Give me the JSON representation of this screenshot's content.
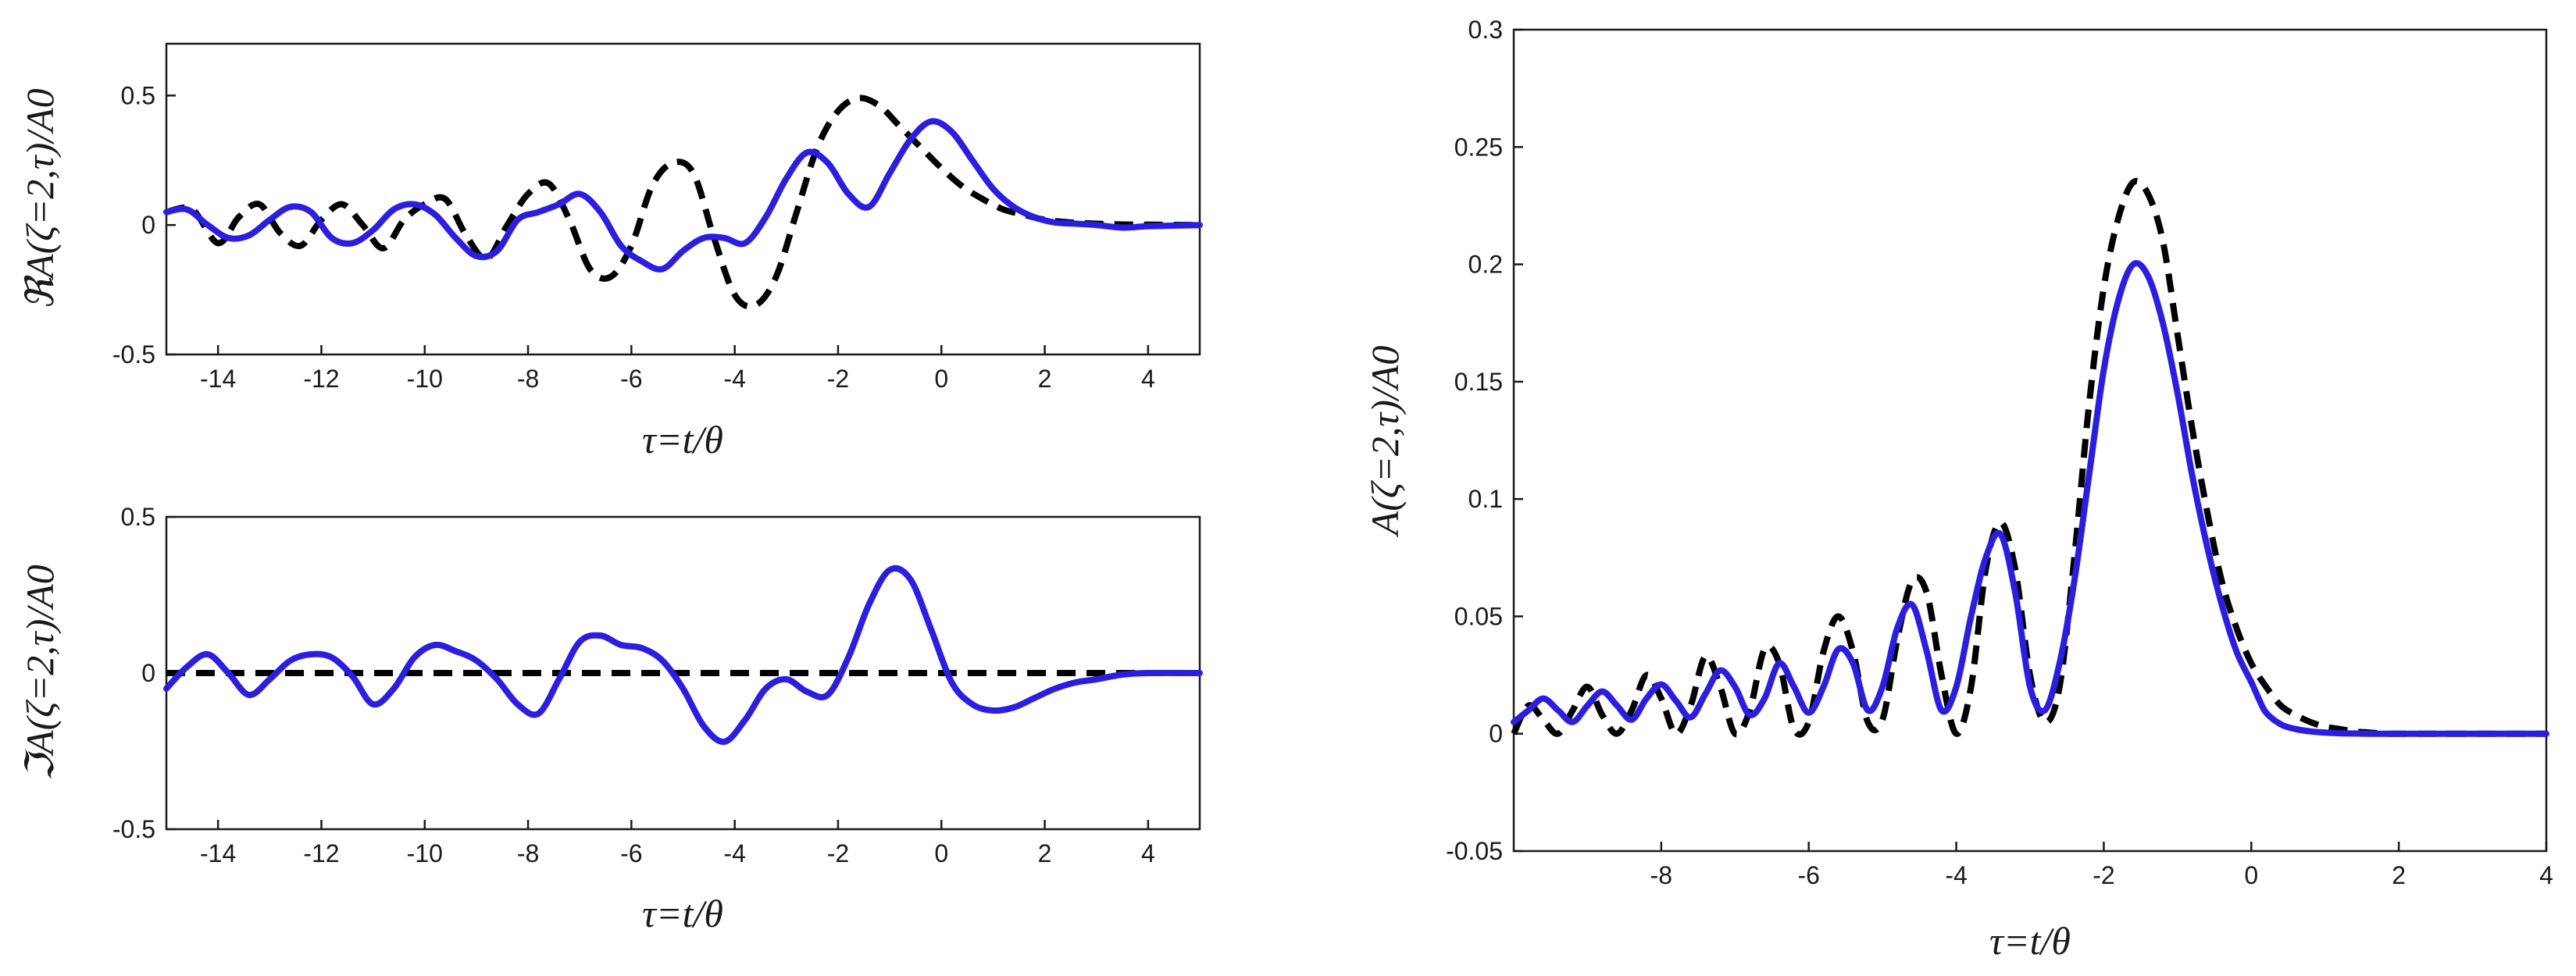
{
  "chart_data": [
    {
      "type": "line",
      "panel": "top-left",
      "ylabel": "ℜA(ζ=2,τ)/A0",
      "xlabel": "τ=t/θ",
      "xlim": [
        -15,
        5
      ],
      "ylim": [
        -0.5,
        0.7
      ],
      "xticks": [
        -14,
        -12,
        -10,
        -8,
        -6,
        -4,
        -2,
        0,
        2,
        4
      ],
      "xtick_labels": [
        "-14",
        "-12",
        "-10",
        "-8",
        "-6",
        "-4",
        "-2",
        "0",
        "2",
        "4"
      ],
      "yticks": [
        -0.5,
        0,
        0.5
      ],
      "ytick_labels": [
        "-0.5",
        "0",
        "0.5"
      ],
      "series": [
        {
          "style": "dashed",
          "color": "#000000",
          "x": [
            -15,
            -14.5,
            -14,
            -13.6,
            -13.2,
            -12.8,
            -12.4,
            -12,
            -11.6,
            -11.2,
            -10.8,
            -10.4,
            -10,
            -9.6,
            -9.2,
            -8.8,
            -8.4,
            -8,
            -7.6,
            -7.2,
            -6.8,
            -6.4,
            -6,
            -5.6,
            -5.2,
            -4.8,
            -4.4,
            -4,
            -3.6,
            -3.2,
            -2.8,
            -2.4,
            -2,
            -1.6,
            -1.2,
            -0.8,
            -0.4,
            0,
            0.4,
            0.8,
            1.2,
            1.6,
            2,
            2.5,
            3,
            3.5,
            4,
            5
          ],
          "y": [
            0.05,
            0.06,
            -0.07,
            0.03,
            0.08,
            -0.03,
            -0.08,
            0.02,
            0.08,
            0.0,
            -0.09,
            0.02,
            0.08,
            0.1,
            -0.04,
            -0.13,
            0.0,
            0.12,
            0.16,
            0.02,
            -0.17,
            -0.2,
            -0.08,
            0.15,
            0.24,
            0.2,
            -0.05,
            -0.27,
            -0.31,
            -0.2,
            0.05,
            0.3,
            0.44,
            0.49,
            0.46,
            0.38,
            0.3,
            0.22,
            0.15,
            0.1,
            0.06,
            0.04,
            0.02,
            0.01,
            0.005,
            0.002,
            0.001,
            0.0
          ]
        },
        {
          "style": "solid",
          "color": "#2a1ee0",
          "x": [
            -15,
            -14.6,
            -14.2,
            -13.8,
            -13.4,
            -13,
            -12.6,
            -12.2,
            -11.8,
            -11.4,
            -11,
            -10.6,
            -10.2,
            -9.8,
            -9.4,
            -9,
            -8.6,
            -8.2,
            -7.8,
            -7.4,
            -7,
            -6.6,
            -6.2,
            -5.8,
            -5.4,
            -5,
            -4.6,
            -4.2,
            -3.8,
            -3.4,
            -3,
            -2.6,
            -2.2,
            -1.8,
            -1.4,
            -1,
            -0.6,
            -0.2,
            0.2,
            0.6,
            1,
            1.4,
            1.8,
            2.2,
            2.6,
            3,
            3.5,
            4,
            5
          ],
          "y": [
            0.05,
            0.06,
            0.0,
            -0.05,
            -0.04,
            0.02,
            0.07,
            0.05,
            -0.05,
            -0.07,
            -0.02,
            0.06,
            0.08,
            0.04,
            -0.05,
            -0.12,
            -0.1,
            0.02,
            0.05,
            0.08,
            0.12,
            0.05,
            -0.08,
            -0.14,
            -0.17,
            -0.1,
            -0.05,
            -0.05,
            -0.07,
            0.03,
            0.18,
            0.28,
            0.24,
            0.12,
            0.07,
            0.2,
            0.33,
            0.4,
            0.36,
            0.25,
            0.14,
            0.07,
            0.03,
            0.01,
            0.005,
            0.0,
            -0.01,
            -0.005,
            0.0
          ]
        }
      ]
    },
    {
      "type": "line",
      "panel": "bottom-left",
      "ylabel": "ℑA(ζ=2,τ)/A0",
      "xlabel": "τ=t/θ",
      "xlim": [
        -15,
        5
      ],
      "ylim": [
        -0.5,
        0.5
      ],
      "xticks": [
        -14,
        -12,
        -10,
        -8,
        -6,
        -4,
        -2,
        0,
        2,
        4
      ],
      "xtick_labels": [
        "-14",
        "-12",
        "-10",
        "-8",
        "-6",
        "-4",
        "-2",
        "0",
        "2",
        "4"
      ],
      "yticks": [
        -0.5,
        0,
        0.5
      ],
      "ytick_labels": [
        "-0.5",
        "0",
        "0.5"
      ],
      "series": [
        {
          "style": "dashed",
          "color": "#000000",
          "x": [
            -15,
            -12,
            -9,
            -6,
            -3,
            0,
            3,
            5
          ],
          "y": [
            0,
            0,
            0,
            0,
            0,
            0,
            0,
            0
          ]
        },
        {
          "style": "solid",
          "color": "#2a1ee0",
          "x": [
            -15,
            -14.6,
            -14.2,
            -13.8,
            -13.4,
            -13,
            -12.6,
            -12.2,
            -11.8,
            -11.4,
            -11,
            -10.6,
            -10.2,
            -9.8,
            -9.4,
            -9,
            -8.6,
            -8.2,
            -7.8,
            -7.4,
            -7,
            -6.6,
            -6.2,
            -5.8,
            -5.4,
            -5,
            -4.6,
            -4.2,
            -3.8,
            -3.4,
            -3,
            -2.6,
            -2.2,
            -1.8,
            -1.4,
            -1,
            -0.6,
            -0.2,
            0.2,
            0.6,
            1,
            1.4,
            1.8,
            2.2,
            2.6,
            3,
            3.5,
            4,
            5
          ],
          "y": [
            -0.05,
            0.02,
            0.06,
            0.0,
            -0.07,
            -0.02,
            0.04,
            0.06,
            0.05,
            -0.01,
            -0.1,
            -0.05,
            0.05,
            0.09,
            0.07,
            0.04,
            -0.02,
            -0.1,
            -0.13,
            -0.02,
            0.1,
            0.12,
            0.09,
            0.08,
            0.04,
            -0.05,
            -0.17,
            -0.22,
            -0.15,
            -0.05,
            -0.02,
            -0.06,
            -0.07,
            0.05,
            0.22,
            0.33,
            0.3,
            0.14,
            -0.03,
            -0.1,
            -0.12,
            -0.11,
            -0.08,
            -0.05,
            -0.03,
            -0.02,
            -0.005,
            0.0,
            0.0
          ]
        }
      ]
    },
    {
      "type": "line",
      "panel": "right",
      "ylabel": "A(ζ=2,τ)/A0",
      "xlabel": "τ=t/θ",
      "xlim": [
        -10,
        4
      ],
      "ylim": [
        -0.05,
        0.3
      ],
      "xticks": [
        -8,
        -6,
        -4,
        -2,
        0,
        2,
        4
      ],
      "xtick_labels": [
        "-8",
        "-6",
        "-4",
        "-2",
        "0",
        "2",
        "4"
      ],
      "yticks": [
        -0.05,
        0,
        0.05,
        0.1,
        0.15,
        0.2,
        0.25,
        0.3
      ],
      "ytick_labels": [
        "-0.05",
        "0",
        "0.05",
        "0.1",
        "0.15",
        "0.2",
        "0.25",
        "0.3"
      ],
      "series": [
        {
          "style": "dashed",
          "color": "#000000",
          "x": [
            -10,
            -9.8,
            -9.6,
            -9.4,
            -9.2,
            -9,
            -8.8,
            -8.6,
            -8.4,
            -8.2,
            -8,
            -7.8,
            -7.6,
            -7.4,
            -7.2,
            -7,
            -6.8,
            -6.6,
            -6.4,
            -6.2,
            -6,
            -5.8,
            -5.6,
            -5.4,
            -5.2,
            -5,
            -4.8,
            -4.6,
            -4.4,
            -4.2,
            -4,
            -3.8,
            -3.6,
            -3.4,
            -3.2,
            -3,
            -2.8,
            -2.6,
            -2.4,
            -2.2,
            -2,
            -1.8,
            -1.6,
            -1.4,
            -1.2,
            -1,
            -0.8,
            -0.6,
            -0.4,
            -0.2,
            0,
            0.2,
            0.4,
            0.6,
            0.8,
            1,
            1.2,
            1.4,
            1.6,
            1.8,
            2,
            2.5,
            3,
            4
          ],
          "y": [
            0.0,
            0.012,
            0.006,
            0.0,
            0.01,
            0.02,
            0.008,
            0.0,
            0.01,
            0.025,
            0.015,
            0.0,
            0.012,
            0.033,
            0.02,
            0.0,
            0.01,
            0.036,
            0.03,
            0.002,
            0.005,
            0.035,
            0.05,
            0.035,
            0.005,
            0.006,
            0.04,
            0.065,
            0.06,
            0.025,
            0.0,
            0.02,
            0.07,
            0.09,
            0.07,
            0.025,
            0.005,
            0.02,
            0.075,
            0.14,
            0.19,
            0.22,
            0.235,
            0.23,
            0.21,
            0.17,
            0.13,
            0.095,
            0.065,
            0.045,
            0.03,
            0.02,
            0.012,
            0.008,
            0.005,
            0.003,
            0.002,
            0.001,
            0.0005,
            0.0,
            0.0,
            0.0,
            0.0,
            0.0
          ]
        },
        {
          "style": "solid",
          "color": "#2a1ee0",
          "x": [
            -10,
            -9.8,
            -9.6,
            -9.4,
            -9.2,
            -9,
            -8.8,
            -8.6,
            -8.4,
            -8.2,
            -8,
            -7.8,
            -7.6,
            -7.4,
            -7.2,
            -7,
            -6.8,
            -6.6,
            -6.4,
            -6.2,
            -6,
            -5.8,
            -5.6,
            -5.4,
            -5.2,
            -5,
            -4.8,
            -4.6,
            -4.4,
            -4.2,
            -4,
            -3.8,
            -3.6,
            -3.4,
            -3.2,
            -3,
            -2.8,
            -2.6,
            -2.4,
            -2.2,
            -2,
            -1.8,
            -1.6,
            -1.4,
            -1.2,
            -1,
            -0.8,
            -0.6,
            -0.4,
            -0.2,
            0,
            0.1,
            0.2,
            0.4,
            0.6,
            0.8,
            1,
            1.2,
            1.4,
            1.6,
            1.8,
            2,
            2.2,
            2.4,
            2.6,
            2.8,
            3,
            3.5,
            4
          ],
          "y": [
            0.005,
            0.01,
            0.015,
            0.01,
            0.005,
            0.012,
            0.018,
            0.012,
            0.006,
            0.015,
            0.021,
            0.014,
            0.007,
            0.017,
            0.027,
            0.02,
            0.008,
            0.015,
            0.03,
            0.02,
            0.009,
            0.02,
            0.036,
            0.03,
            0.01,
            0.02,
            0.045,
            0.055,
            0.035,
            0.01,
            0.02,
            0.05,
            0.075,
            0.085,
            0.06,
            0.02,
            0.01,
            0.03,
            0.065,
            0.11,
            0.155,
            0.185,
            0.2,
            0.195,
            0.175,
            0.145,
            0.11,
            0.08,
            0.055,
            0.035,
            0.022,
            0.015,
            0.009,
            0.004,
            0.002,
            0.001,
            0.0005,
            0.0002,
            0.0001,
            0.0,
            0.0,
            0.0,
            0.0,
            0.0,
            0.0,
            0.0,
            0.0,
            0.0,
            0.0
          ]
        }
      ]
    }
  ]
}
